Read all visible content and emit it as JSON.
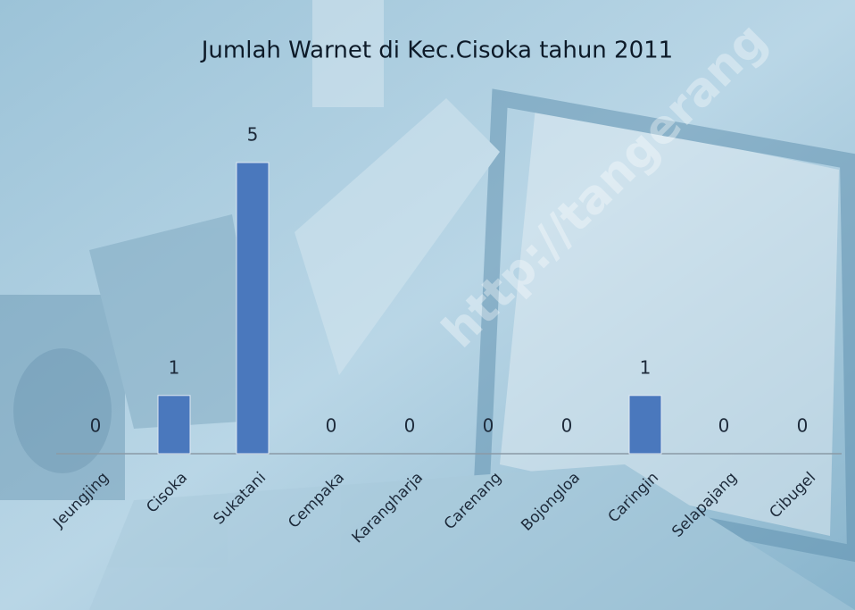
{
  "chart_data": {
    "type": "bar",
    "title": "Jumlah Warnet di Kec.Cisoka tahun 2011",
    "categories": [
      "Jeungjing",
      "Cisoka",
      "Sukatani",
      "Cempaka",
      "Karangharja",
      "Carenang",
      "Bojongloa",
      "Caringin",
      "Selapajang",
      "Cibugel"
    ],
    "values": [
      0,
      1,
      5,
      0,
      0,
      0,
      0,
      1,
      0,
      0
    ],
    "color": "#4a78bd",
    "ylim": [
      0,
      5
    ],
    "watermark": "http://tangerang"
  }
}
